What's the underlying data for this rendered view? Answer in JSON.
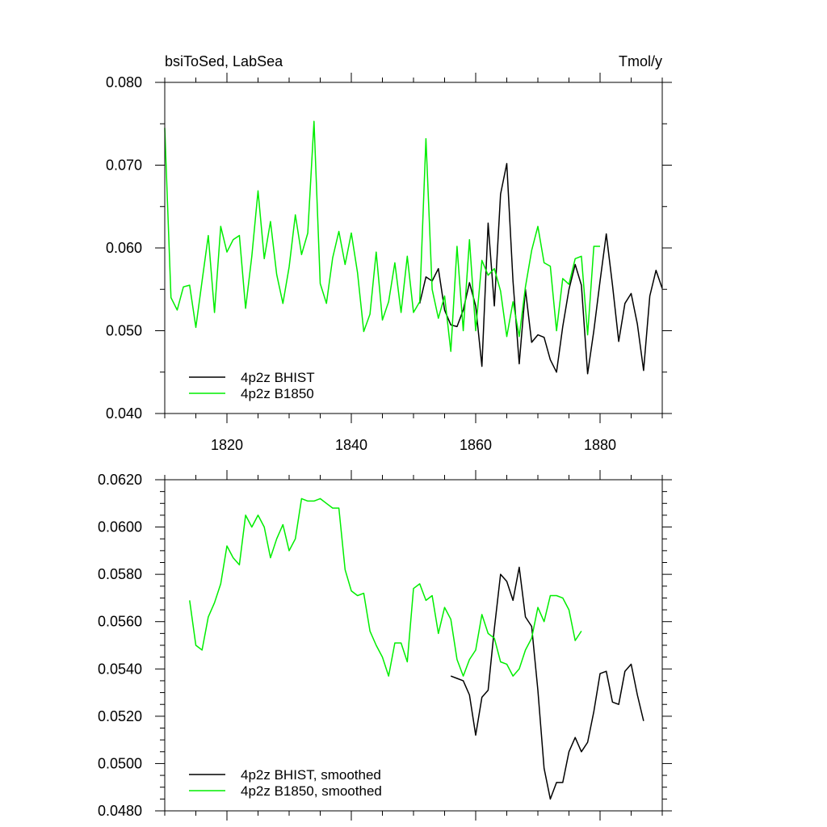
{
  "colors": {
    "bhist": "#000000",
    "b1850": "#00ee00",
    "frame": "#000000",
    "background": "#ffffff"
  },
  "chart_data": [
    {
      "type": "line",
      "title_left": "bsiToSed, LabSea",
      "title_right": "Tmol/y",
      "xlabel": "",
      "ylabel": "",
      "xlim": [
        1810,
        1890
      ],
      "ylim": [
        0.04,
        0.08
      ],
      "x_ticks": [
        1820,
        1840,
        1860,
        1880
      ],
      "x_tick_labels": [
        "1820",
        "1840",
        "1860",
        "1880"
      ],
      "y_ticks": [
        0.04,
        0.05,
        0.06,
        0.07,
        0.08
      ],
      "y_tick_labels": [
        "0.040",
        "0.050",
        "0.060",
        "0.070",
        "0.080"
      ],
      "legend_position": "bottom-left",
      "series": [
        {
          "name": "4p2z BHIST",
          "color": "#000000",
          "x": [
            1851,
            1852,
            1853,
            1854,
            1855,
            1856,
            1857,
            1858,
            1859,
            1860,
            1861,
            1862,
            1863,
            1864,
            1865,
            1866,
            1867,
            1868,
            1869,
            1870,
            1871,
            1872,
            1873,
            1874,
            1875,
            1876,
            1877,
            1878,
            1879,
            1880,
            1881,
            1882,
            1883,
            1884,
            1885,
            1886,
            1887,
            1888,
            1889,
            1890
          ],
          "y": [
            0.0533,
            0.0565,
            0.056,
            0.0575,
            0.0525,
            0.0507,
            0.0505,
            0.0525,
            0.0558,
            0.053,
            0.0457,
            0.063,
            0.053,
            0.0665,
            0.0702,
            0.056,
            0.046,
            0.055,
            0.0486,
            0.0495,
            0.0492,
            0.0465,
            0.045,
            0.0505,
            0.055,
            0.058,
            0.0555,
            0.0448,
            0.05,
            0.056,
            0.0617,
            0.0555,
            0.0487,
            0.0533,
            0.0545,
            0.0508,
            0.0452,
            0.0542,
            0.0573,
            0.0551
          ]
        },
        {
          "name": "4p2z B1850",
          "color": "#00ee00",
          "x": [
            1810,
            1811,
            1812,
            1813,
            1814,
            1815,
            1816,
            1817,
            1818,
            1819,
            1820,
            1821,
            1822,
            1823,
            1824,
            1825,
            1826,
            1827,
            1828,
            1829,
            1830,
            1831,
            1832,
            1833,
            1834,
            1835,
            1836,
            1837,
            1838,
            1839,
            1840,
            1841,
            1842,
            1843,
            1844,
            1845,
            1846,
            1847,
            1848,
            1849,
            1850,
            1851,
            1852,
            1853,
            1854,
            1855,
            1856,
            1857,
            1858,
            1859,
            1860,
            1861,
            1862,
            1863,
            1864,
            1865,
            1866,
            1867,
            1868,
            1869,
            1870,
            1871,
            1872,
            1873,
            1874,
            1875,
            1876,
            1877,
            1878,
            1879,
            1880
          ],
          "y": [
            0.0745,
            0.054,
            0.0525,
            0.0553,
            0.0555,
            0.0504,
            0.056,
            0.0615,
            0.0522,
            0.0626,
            0.0595,
            0.061,
            0.0615,
            0.0527,
            0.059,
            0.0669,
            0.0587,
            0.0632,
            0.0568,
            0.0533,
            0.0577,
            0.064,
            0.0592,
            0.0618,
            0.0753,
            0.0557,
            0.0533,
            0.0588,
            0.062,
            0.058,
            0.0618,
            0.057,
            0.0499,
            0.052,
            0.0595,
            0.0513,
            0.0535,
            0.0582,
            0.0522,
            0.059,
            0.0522,
            0.0535,
            0.0732,
            0.055,
            0.0515,
            0.0542,
            0.0475,
            0.0602,
            0.05,
            0.061,
            0.05,
            0.0585,
            0.0567,
            0.0575,
            0.0548,
            0.0493,
            0.0535,
            0.0493,
            0.0553,
            0.0597,
            0.0626,
            0.0582,
            0.0578,
            0.05,
            0.0563,
            0.0556,
            0.0587,
            0.059,
            0.0495,
            0.0602,
            0.0602
          ]
        }
      ]
    },
    {
      "type": "line",
      "xlabel": "",
      "ylabel": "",
      "xlim": [
        1810,
        1890
      ],
      "ylim": [
        0.048,
        0.062
      ],
      "x_ticks": [
        1820,
        1840,
        1860,
        1880
      ],
      "x_tick_labels": [],
      "y_ticks": [
        0.048,
        0.05,
        0.052,
        0.054,
        0.056,
        0.058,
        0.06,
        0.062
      ],
      "y_tick_labels": [
        "0.0480",
        "0.0500",
        "0.0520",
        "0.0540",
        "0.0560",
        "0.0580",
        "0.0600",
        "0.0620"
      ],
      "legend_position": "bottom-left",
      "series": [
        {
          "name": "4p2z BHIST, smoothed",
          "color": "#000000",
          "x": [
            1856,
            1857,
            1858,
            1859,
            1860,
            1861,
            1862,
            1863,
            1864,
            1865,
            1866,
            1867,
            1868,
            1869,
            1870,
            1871,
            1872,
            1873,
            1874,
            1875,
            1876,
            1877,
            1878,
            1879,
            1880,
            1881,
            1882,
            1883,
            1884,
            1885,
            1886,
            1887
          ],
          "y": [
            0.0537,
            0.0536,
            0.0535,
            0.0529,
            0.0512,
            0.0528,
            0.0531,
            0.0557,
            0.058,
            0.0577,
            0.0569,
            0.0583,
            0.0562,
            0.0558,
            0.0531,
            0.0498,
            0.0485,
            0.0492,
            0.0492,
            0.0505,
            0.0511,
            0.0505,
            0.0509,
            0.0522,
            0.0538,
            0.0539,
            0.0526,
            0.0525,
            0.0539,
            0.0542,
            0.0529,
            0.0518
          ]
        },
        {
          "name": "4p2z B1850, smoothed",
          "color": "#00ee00",
          "x": [
            1814,
            1815,
            1816,
            1817,
            1818,
            1819,
            1820,
            1821,
            1822,
            1823,
            1824,
            1825,
            1826,
            1827,
            1828,
            1829,
            1830,
            1831,
            1832,
            1833,
            1834,
            1835,
            1836,
            1837,
            1838,
            1839,
            1840,
            1841,
            1842,
            1843,
            1844,
            1845,
            1846,
            1847,
            1848,
            1849,
            1850,
            1851,
            1852,
            1853,
            1854,
            1855,
            1856,
            1857,
            1858,
            1859,
            1860,
            1861,
            1862,
            1863,
            1864,
            1865,
            1866,
            1867,
            1868,
            1869,
            1870,
            1871,
            1872,
            1873,
            1874,
            1875,
            1876,
            1877
          ],
          "y": [
            0.0569,
            0.055,
            0.0548,
            0.0562,
            0.0568,
            0.0576,
            0.0592,
            0.0587,
            0.0584,
            0.0605,
            0.06,
            0.0605,
            0.06,
            0.0587,
            0.0595,
            0.0601,
            0.059,
            0.0595,
            0.0612,
            0.0611,
            0.0611,
            0.0612,
            0.061,
            0.0608,
            0.0608,
            0.0582,
            0.0573,
            0.0571,
            0.0572,
            0.0556,
            0.055,
            0.0545,
            0.0537,
            0.0551,
            0.0551,
            0.0543,
            0.0574,
            0.0576,
            0.0569,
            0.0571,
            0.0555,
            0.0566,
            0.0561,
            0.0544,
            0.0537,
            0.0544,
            0.0548,
            0.0563,
            0.0555,
            0.0553,
            0.0543,
            0.0542,
            0.0537,
            0.054,
            0.0548,
            0.0553,
            0.0566,
            0.056,
            0.0571,
            0.0571,
            0.057,
            0.0565,
            0.0552,
            0.0556
          ]
        }
      ]
    }
  ]
}
